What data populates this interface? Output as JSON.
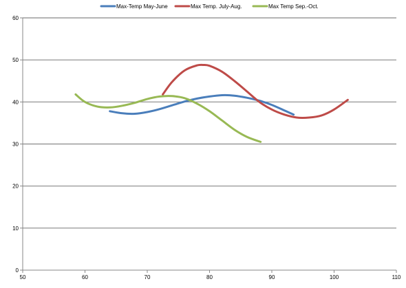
{
  "chart_data": {
    "type": "line",
    "title": "",
    "xlabel": "",
    "ylabel": "",
    "xlim": [
      50,
      110
    ],
    "ylim": [
      0,
      60
    ],
    "x_ticks": [
      "50",
      "60",
      "70",
      "80",
      "90",
      "100",
      "110"
    ],
    "y_ticks": [
      "0",
      "10",
      "20",
      "30",
      "40",
      "50",
      "60"
    ],
    "grid": "horizontal major gridlines",
    "legend_position": "top",
    "series": [
      {
        "name": "Max-Temp May-June",
        "color": "#4A7EBB",
        "x": [
          64,
          66,
          68,
          70,
          72,
          74,
          76,
          78,
          80,
          82,
          84,
          86,
          88,
          90,
          92,
          93.5
        ],
        "y": [
          37.8,
          37.3,
          37.2,
          37.6,
          38.3,
          39.2,
          40.1,
          40.8,
          41.3,
          41.6,
          41.5,
          41.0,
          40.3,
          39.3,
          38.0,
          37.0
        ]
      },
      {
        "name": "Max Temp. July-Aug.",
        "color": "#BE4B48",
        "x": [
          72.5,
          74,
          76,
          78,
          79,
          80,
          82,
          84,
          86,
          88,
          90,
          92,
          94,
          96,
          98,
          100,
          102.2
        ],
        "y": [
          41.8,
          44.8,
          47.5,
          48.7,
          48.8,
          48.6,
          47.2,
          45.0,
          42.5,
          40.0,
          38.2,
          37.0,
          36.3,
          36.3,
          36.8,
          38.2,
          40.5
        ]
      },
      {
        "name": "Max Temp Sep.-Oct.",
        "color": "#98B954",
        "x": [
          58.5,
          60,
          62,
          64,
          66,
          68,
          70,
          72,
          74,
          76,
          78,
          80,
          82,
          84,
          86,
          88.2
        ],
        "y": [
          41.8,
          40.0,
          38.9,
          38.7,
          39.1,
          39.8,
          40.7,
          41.3,
          41.4,
          40.9,
          39.6,
          37.8,
          35.6,
          33.4,
          31.7,
          30.5
        ]
      }
    ]
  }
}
